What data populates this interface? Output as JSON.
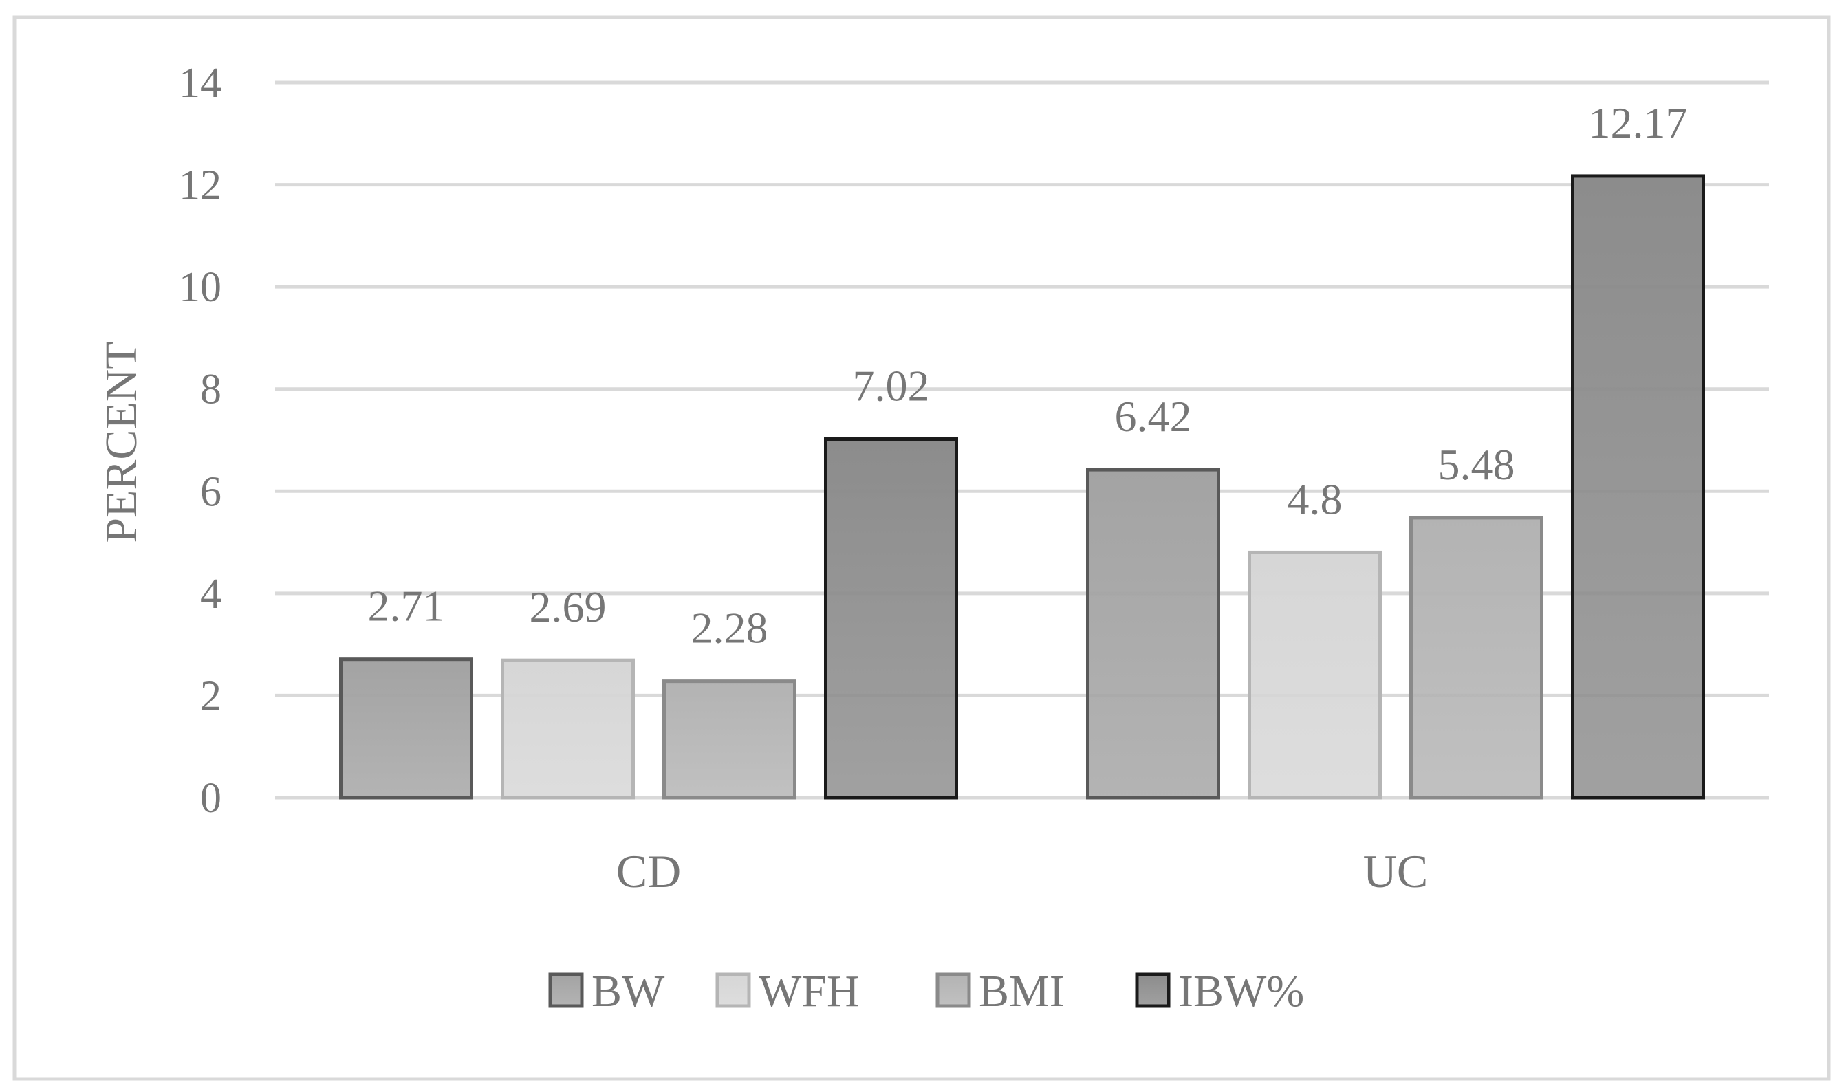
{
  "chart_data": {
    "type": "bar",
    "categories": [
      "CD",
      "UC"
    ],
    "series": [
      {
        "name": "BW",
        "values": [
          2.71,
          6.42
        ],
        "fill": "#a3a3a3",
        "stroke": "#595959"
      },
      {
        "name": "WFH",
        "values": [
          2.69,
          4.8
        ],
        "fill": "#d6d6d6",
        "stroke": "#b5b5b5"
      },
      {
        "name": "BMI",
        "values": [
          2.28,
          5.48
        ],
        "fill": "#b3b3b3",
        "stroke": "#8a8a8a"
      },
      {
        "name": "IBW%",
        "values": [
          7.02,
          12.17
        ],
        "fill": "#8c8c8c",
        "stroke": "#1a1a1a"
      }
    ],
    "data_labels": [
      [
        "2.71",
        "6.42"
      ],
      [
        "2.69",
        "4.8"
      ],
      [
        "2.28",
        "5.48"
      ],
      [
        "7.02",
        "12.17"
      ]
    ],
    "ylabel": "PERCENT",
    "xlabel": "",
    "ylim": [
      0,
      14
    ],
    "yticks": [
      0,
      2,
      4,
      6,
      8,
      10,
      12,
      14
    ],
    "grid": true,
    "legend_position": "bottom"
  }
}
